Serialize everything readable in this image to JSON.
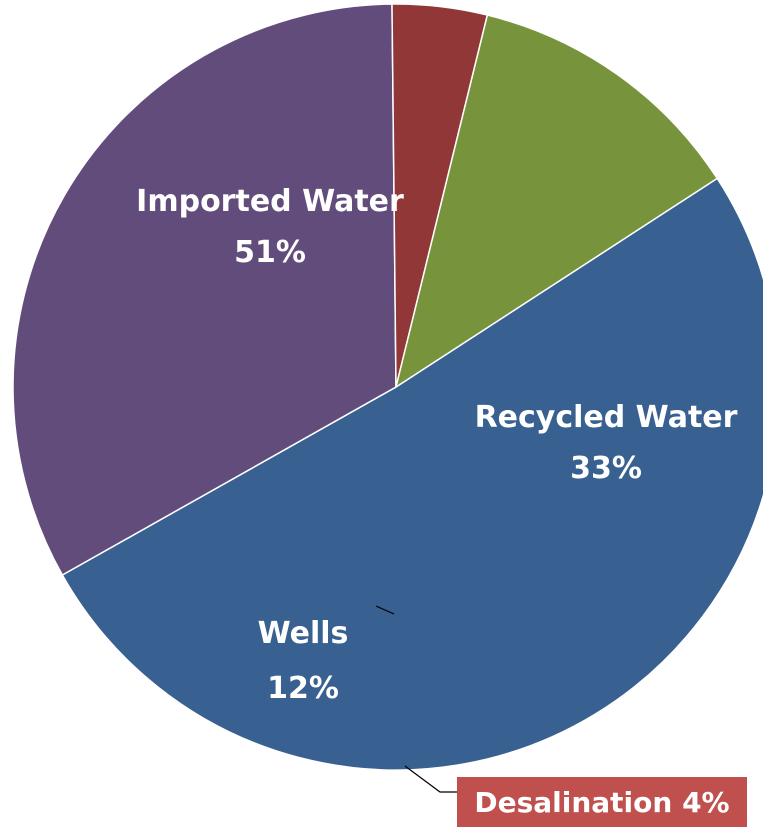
{
  "chart_data": {
    "type": "pie",
    "title": "",
    "slices": [
      {
        "label": "Imported Water",
        "value": 51,
        "value_label": "51%",
        "color": "#386090"
      },
      {
        "label": "Recycled Water",
        "value": 33,
        "value_label": "33%",
        "color": "#614c7b"
      },
      {
        "label": "Desalination",
        "value": 4,
        "value_label": "Desalination 4%",
        "color": "#923737"
      },
      {
        "label": "Wells",
        "value": 12,
        "value_label": "12%",
        "color": "#77933c"
      }
    ],
    "start_angle_deg": 57,
    "direction": "clockwise",
    "legend": "none",
    "callout": {
      "slice": "Desalination",
      "background": "#c0504d"
    }
  }
}
